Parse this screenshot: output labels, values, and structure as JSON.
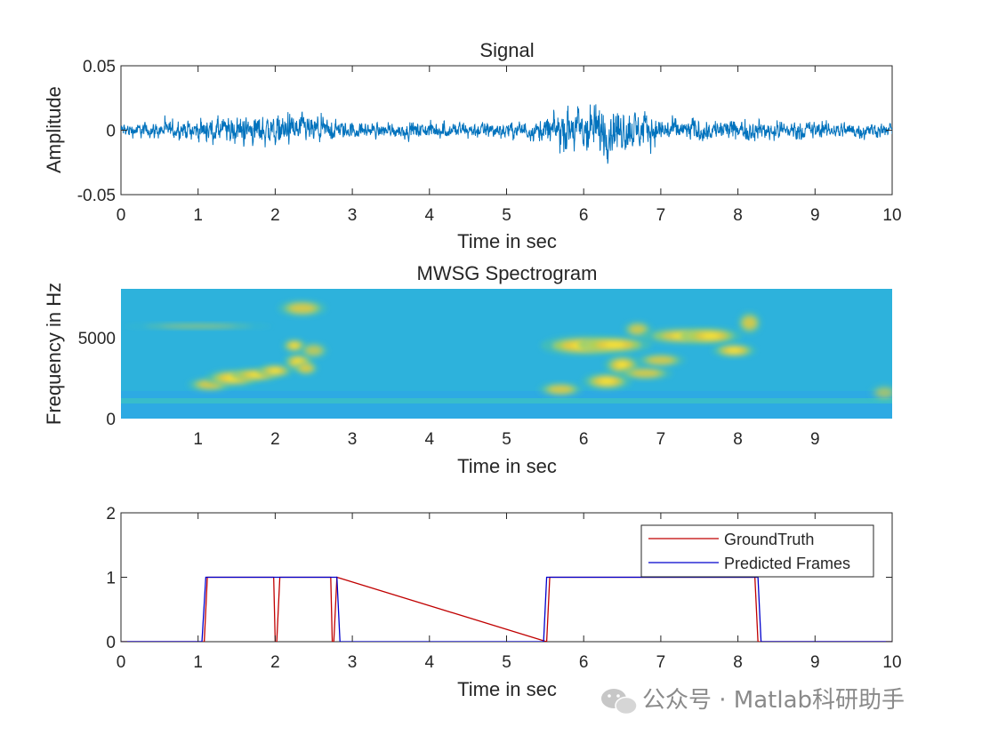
{
  "watermark": {
    "text": "公众号 · Matlab科研助手",
    "icon": "wechat-icon"
  },
  "colors": {
    "signal": "#0072BD",
    "groundtruth": "#C00000",
    "predicted": "#0000CC",
    "spec_background": "#2DB2DC"
  },
  "chart_data": [
    {
      "type": "line",
      "title": "Signal",
      "xlabel": "Time in sec",
      "ylabel": "Amplitude",
      "xlim": [
        0,
        10
      ],
      "ylim": [
        -0.05,
        0.05
      ],
      "xticks": [
        "0",
        "1",
        "2",
        "3",
        "4",
        "5",
        "6",
        "7",
        "8",
        "9",
        "10"
      ],
      "yticks": [
        "-0.05",
        "0",
        "0.05"
      ],
      "envelope": {
        "t": [
          0,
          0.3,
          0.7,
          1.0,
          1.4,
          1.8,
          2.0,
          2.3,
          2.6,
          2.9,
          3.2,
          3.6,
          4.0,
          4.5,
          5.0,
          5.4,
          5.6,
          5.9,
          6.1,
          6.3,
          6.5,
          6.8,
          7.0,
          7.5,
          8.0,
          8.5,
          9.0,
          9.5,
          10.0
        ],
        "amp": [
          0.009,
          0.01,
          0.011,
          0.014,
          0.018,
          0.022,
          0.021,
          0.02,
          0.016,
          0.012,
          0.01,
          0.01,
          0.011,
          0.011,
          0.011,
          0.013,
          0.022,
          0.033,
          0.036,
          0.035,
          0.03,
          0.022,
          0.017,
          0.015,
          0.014,
          0.013,
          0.012,
          0.011,
          0.009
        ]
      }
    },
    {
      "type": "heatmap",
      "title": "MWSG Spectrogram",
      "xlabel": "Time in sec",
      "ylabel": "Frequency in Hz",
      "xlim": [
        0,
        10
      ],
      "ylim": [
        0,
        8000
      ],
      "xticks": [
        "1",
        "2",
        "3",
        "4",
        "5",
        "6",
        "7",
        "8",
        "9"
      ],
      "yticks": [
        "0",
        "5000"
      ],
      "blobs": [
        {
          "t": 1.15,
          "f": 2100,
          "dt": 0.18,
          "df": 250,
          "level": 0.8
        },
        {
          "t": 1.45,
          "f": 2500,
          "dt": 0.22,
          "df": 300,
          "level": 1.0
        },
        {
          "t": 1.75,
          "f": 2700,
          "dt": 0.2,
          "df": 250,
          "level": 0.9
        },
        {
          "t": 2.0,
          "f": 2950,
          "dt": 0.15,
          "df": 250,
          "level": 0.85
        },
        {
          "t": 2.3,
          "f": 3500,
          "dt": 0.12,
          "df": 300,
          "level": 0.95
        },
        {
          "t": 2.25,
          "f": 4500,
          "dt": 0.1,
          "df": 250,
          "level": 0.85
        },
        {
          "t": 2.4,
          "f": 3100,
          "dt": 0.1,
          "df": 250,
          "level": 0.8
        },
        {
          "t": 2.35,
          "f": 6800,
          "dt": 0.2,
          "df": 300,
          "level": 0.8
        },
        {
          "t": 2.5,
          "f": 4200,
          "dt": 0.12,
          "df": 300,
          "level": 0.6
        },
        {
          "t": 1.0,
          "f": 5700,
          "dt": 0.6,
          "df": 120,
          "level": 0.35
        },
        {
          "t": 5.7,
          "f": 1800,
          "dt": 0.18,
          "df": 250,
          "level": 0.8
        },
        {
          "t": 6.0,
          "f": 4500,
          "dt": 0.35,
          "df": 350,
          "level": 1.0
        },
        {
          "t": 6.4,
          "f": 4550,
          "dt": 0.3,
          "df": 300,
          "level": 0.95
        },
        {
          "t": 6.3,
          "f": 2300,
          "dt": 0.2,
          "df": 300,
          "level": 0.95
        },
        {
          "t": 6.5,
          "f": 3300,
          "dt": 0.15,
          "df": 350,
          "level": 0.9
        },
        {
          "t": 6.8,
          "f": 2800,
          "dt": 0.22,
          "df": 250,
          "level": 0.75
        },
        {
          "t": 7.0,
          "f": 3600,
          "dt": 0.2,
          "df": 250,
          "level": 0.75
        },
        {
          "t": 6.7,
          "f": 5500,
          "dt": 0.12,
          "df": 300,
          "level": 0.7
        },
        {
          "t": 7.3,
          "f": 5100,
          "dt": 0.35,
          "df": 300,
          "level": 0.85
        },
        {
          "t": 7.65,
          "f": 5100,
          "dt": 0.25,
          "df": 300,
          "level": 0.9
        },
        {
          "t": 7.95,
          "f": 4200,
          "dt": 0.18,
          "df": 250,
          "level": 0.95
        },
        {
          "t": 8.15,
          "f": 5900,
          "dt": 0.1,
          "df": 400,
          "level": 0.75
        },
        {
          "t": 9.9,
          "f": 1600,
          "dt": 0.12,
          "df": 300,
          "level": 0.45
        }
      ]
    },
    {
      "type": "line",
      "title": "",
      "xlabel": "Time in sec",
      "ylabel": "",
      "xlim": [
        0,
        10
      ],
      "ylim": [
        0,
        2
      ],
      "xticks": [
        "0",
        "1",
        "2",
        "3",
        "4",
        "5",
        "6",
        "7",
        "8",
        "9",
        "10"
      ],
      "yticks": [
        "0",
        "1",
        "2"
      ],
      "legend": {
        "location": "top-right",
        "entries": [
          "GroundTruth",
          "Predicted Frames"
        ]
      },
      "series": [
        {
          "name": "GroundTruth",
          "x": [
            0,
            1.08,
            1.12,
            1.98,
            2.0,
            2.02,
            2.06,
            2.72,
            2.74,
            2.76,
            2.8,
            5.52,
            5.56,
            8.22,
            8.26,
            10
          ],
          "y": [
            0,
            0,
            1,
            1,
            0,
            0,
            1,
            1,
            0,
            0,
            1,
            0,
            1,
            1,
            0,
            0
          ]
        },
        {
          "name": "Predicted Frames",
          "x": [
            0,
            1.05,
            1.1,
            2.8,
            2.84,
            5.48,
            5.52,
            8.26,
            8.3,
            10
          ],
          "y": [
            0,
            0,
            1,
            1,
            0,
            0,
            1,
            1,
            0,
            0
          ]
        }
      ]
    }
  ]
}
